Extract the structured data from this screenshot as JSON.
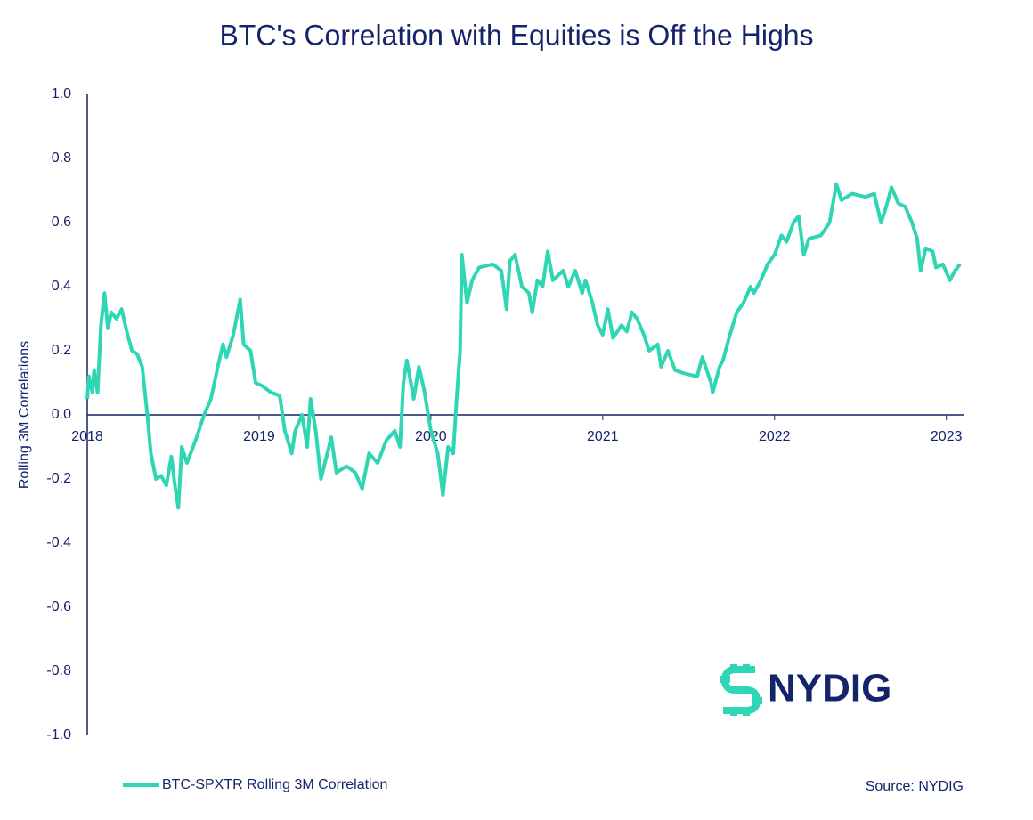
{
  "chart_data": {
    "type": "line",
    "title": "BTC's Correlation with Equities is Off the Highs",
    "y_label": "Rolling 3M Correlations",
    "source": "Source: NYDIG",
    "logo": "NYDIG",
    "x": [
      2018.0,
      2018.01,
      2018.03,
      2018.04,
      2018.06,
      2018.08,
      2018.1,
      2018.12,
      2018.14,
      2018.17,
      2018.2,
      2018.23,
      2018.26,
      2018.29,
      2018.32,
      2018.35,
      2018.37,
      2018.4,
      2018.43,
      2018.46,
      2018.49,
      2018.51,
      2018.53,
      2018.55,
      2018.58,
      2018.63,
      2018.68,
      2018.72,
      2018.76,
      2018.79,
      2018.81,
      2018.85,
      2018.89,
      2018.91,
      2018.95,
      2018.98,
      2019.02,
      2019.07,
      2019.12,
      2019.15,
      2019.19,
      2019.21,
      2019.25,
      2019.28,
      2019.3,
      2019.33,
      2019.36,
      2019.42,
      2019.45,
      2019.51,
      2019.56,
      2019.6,
      2019.64,
      2019.69,
      2019.74,
      2019.79,
      2019.82,
      2019.84,
      2019.86,
      2019.9,
      2019.93,
      2019.96,
      2020.0,
      2020.04,
      2020.07,
      2020.1,
      2020.13,
      2020.15,
      2020.17,
      2020.18,
      2020.21,
      2020.24,
      2020.28,
      2020.36,
      2020.41,
      2020.44,
      2020.46,
      2020.49,
      2020.53,
      2020.57,
      2020.59,
      2020.62,
      2020.65,
      2020.68,
      2020.71,
      2020.77,
      2020.8,
      2020.84,
      2020.88,
      2020.9,
      2020.94,
      2020.97,
      2021.0,
      2021.03,
      2021.06,
      2021.11,
      2021.14,
      2021.17,
      2021.2,
      2021.24,
      2021.27,
      2021.32,
      2021.34,
      2021.38,
      2021.42,
      2021.47,
      2021.55,
      2021.58,
      2021.63,
      2021.64,
      2021.68,
      2021.7,
      2021.74,
      2021.78,
      2021.82,
      2021.86,
      2021.88,
      2021.92,
      2021.96,
      2022.0,
      2022.04,
      2022.07,
      2022.11,
      2022.14,
      2022.17,
      2022.2,
      2022.27,
      2022.32,
      2022.36,
      2022.39,
      2022.45,
      2022.53,
      2022.58,
      2022.62,
      2022.65,
      2022.68,
      2022.72,
      2022.76,
      2022.8,
      2022.83,
      2022.85,
      2022.88,
      2022.92,
      2022.94,
      2022.98,
      2023.02,
      2023.05,
      2023.08
    ],
    "series": [
      {
        "name": "BTC-SPXTR Rolling 3M Correlation",
        "color": "#2fd6b4",
        "values": [
          0.05,
          0.12,
          0.07,
          0.14,
          0.07,
          0.28,
          0.38,
          0.27,
          0.32,
          0.3,
          0.33,
          0.26,
          0.2,
          0.19,
          0.15,
          0.0,
          -0.12,
          -0.2,
          -0.19,
          -0.22,
          -0.13,
          -0.22,
          -0.29,
          -0.1,
          -0.15,
          -0.08,
          0.0,
          0.05,
          0.15,
          0.22,
          0.18,
          0.25,
          0.36,
          0.22,
          0.2,
          0.1,
          0.09,
          0.07,
          0.06,
          -0.05,
          -0.12,
          -0.05,
          0.0,
          -0.1,
          0.05,
          -0.05,
          -0.2,
          -0.07,
          -0.18,
          -0.16,
          -0.18,
          -0.23,
          -0.12,
          -0.15,
          -0.08,
          -0.05,
          -0.1,
          0.1,
          0.17,
          0.05,
          0.15,
          0.08,
          -0.05,
          -0.12,
          -0.25,
          -0.1,
          -0.12,
          0.05,
          0.2,
          0.5,
          0.35,
          0.42,
          0.46,
          0.47,
          0.45,
          0.33,
          0.48,
          0.5,
          0.4,
          0.38,
          0.32,
          0.42,
          0.4,
          0.51,
          0.42,
          0.45,
          0.4,
          0.45,
          0.38,
          0.42,
          0.35,
          0.28,
          0.25,
          0.33,
          0.24,
          0.28,
          0.26,
          0.32,
          0.3,
          0.25,
          0.2,
          0.22,
          0.15,
          0.2,
          0.14,
          0.13,
          0.12,
          0.18,
          0.1,
          0.07,
          0.15,
          0.17,
          0.25,
          0.32,
          0.35,
          0.4,
          0.38,
          0.42,
          0.47,
          0.5,
          0.56,
          0.54,
          0.6,
          0.62,
          0.5,
          0.55,
          0.56,
          0.6,
          0.72,
          0.67,
          0.69,
          0.68,
          0.69,
          0.6,
          0.65,
          0.71,
          0.66,
          0.65,
          0.6,
          0.55,
          0.45,
          0.52,
          0.51,
          0.46,
          0.47,
          0.42,
          0.45,
          0.47
        ]
      }
    ],
    "xlim": [
      2018,
      2023.1
    ],
    "xticks": [
      2018,
      2019,
      2020,
      2021,
      2022,
      2023
    ],
    "ylim": [
      -1,
      1
    ],
    "yticks": [
      {
        "value": 1,
        "label": "1.0"
      },
      0.8,
      0.6,
      0.4,
      0.2,
      {
        "value": 0,
        "label": "0.0"
      },
      -0.2,
      -0.4,
      -0.6,
      -0.8,
      {
        "value": -1,
        "label": "-1.0"
      }
    ],
    "grid": false
  }
}
